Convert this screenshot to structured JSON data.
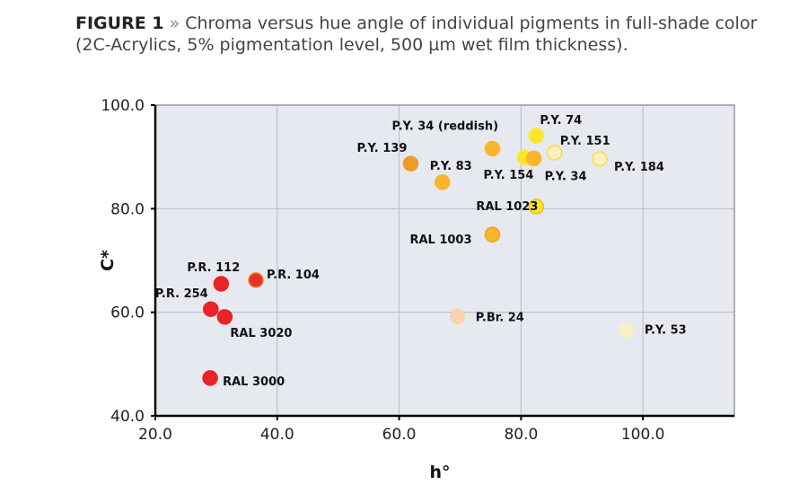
{
  "caption": {
    "figure": "FIGURE 1",
    "separator": "»",
    "text": "Chroma versus hue angle of individual pigments in full-shade color (2C-Acrylics, 5% pigmentation level, 500 µm wet film thickness)."
  },
  "chart_data": {
    "type": "scatter",
    "title": "",
    "xlabel": "h°",
    "ylabel": "C*",
    "xlim": [
      20,
      115
    ],
    "ylim": [
      40,
      100
    ],
    "xticks": [
      20,
      40,
      60,
      80,
      100
    ],
    "yticks": [
      40,
      60,
      80,
      100
    ],
    "xtick_labels": [
      "20.0",
      "40.0",
      "60.0",
      "80.0",
      "100.0"
    ],
    "ytick_labels": [
      "40.0",
      "60.0",
      "80.0",
      "100.0"
    ],
    "grid": true,
    "points": [
      {
        "label": "P.R. 112",
        "x": 30.8,
        "y": 65.5,
        "color": "#e8232a"
      },
      {
        "label": "P.R. 104",
        "x": 36.5,
        "y": 66.2,
        "color": "#e8302a",
        "edge": "#f08020"
      },
      {
        "label": "P.R. 254",
        "x": 29.1,
        "y": 60.6,
        "color": "#e8232a"
      },
      {
        "label": "RAL 3020",
        "x": 31.4,
        "y": 59.1,
        "color": "#e8232a"
      },
      {
        "label": "RAL 3000",
        "x": 29.0,
        "y": 47.3,
        "color": "#e8232a"
      },
      {
        "label": "P.Br. 24",
        "x": 69.6,
        "y": 59.2,
        "color": "#f8d4ac"
      },
      {
        "label": "P.Y. 53",
        "x": 97.3,
        "y": 56.6,
        "color": "#f8f0c4"
      },
      {
        "label": "P.Y. 139",
        "x": 61.9,
        "y": 88.7,
        "color": "#f09a2a"
      },
      {
        "label": "P.Y. 83",
        "x": 67.1,
        "y": 85.1,
        "color": "#fbb52a"
      },
      {
        "label": "P.Y. 34 (reddish)",
        "x": 75.3,
        "y": 91.6,
        "color": "#fbb52a"
      },
      {
        "label": "P.Y. 74",
        "x": 82.5,
        "y": 94.1,
        "color": "#fde62a"
      },
      {
        "label": "P.Y. 154",
        "x": 80.6,
        "y": 89.9,
        "color": "#fde62a"
      },
      {
        "label": "P.Y. 34",
        "x": 82.1,
        "y": 89.7,
        "color": "#fbb52a"
      },
      {
        "label": "P.Y. 151",
        "x": 85.5,
        "y": 90.8,
        "color": "#f8f0c0",
        "edge": "#f5e040"
      },
      {
        "label": "P.Y. 184",
        "x": 92.9,
        "y": 89.6,
        "color": "#f8f0c0",
        "edge": "#f5e040"
      },
      {
        "label": "RAL 1023",
        "x": 82.5,
        "y": 80.4,
        "color": "#fde62a",
        "edge": "#f0b820"
      },
      {
        "label": "RAL 1003",
        "x": 75.3,
        "y": 75.0,
        "color": "#fbb52a",
        "edge": "#f0a020"
      }
    ]
  }
}
